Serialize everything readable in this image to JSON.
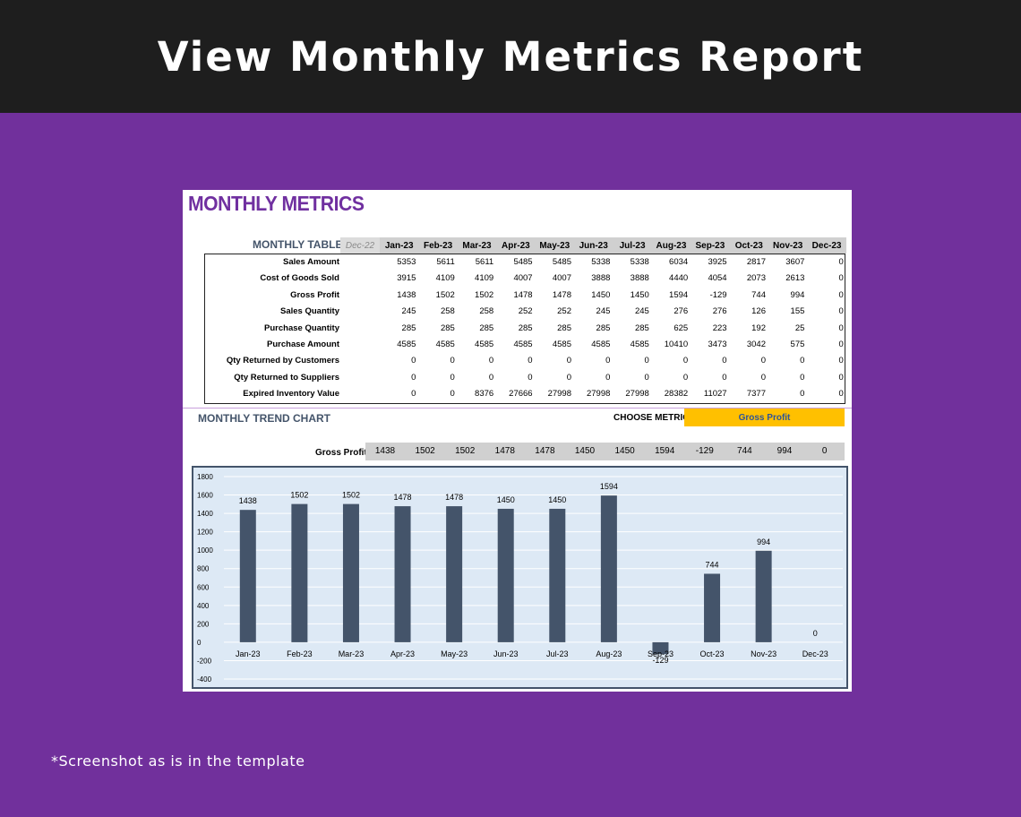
{
  "banner": {
    "title": "View Monthly Metrics Report"
  },
  "sheet": {
    "title": "MONTHLY METRICS",
    "table_label": "MONTHLY TABLE",
    "prev_month": "Dec-22",
    "months": [
      "Jan-23",
      "Feb-23",
      "Mar-23",
      "Apr-23",
      "May-23",
      "Jun-23",
      "Jul-23",
      "Aug-23",
      "Sep-23",
      "Oct-23",
      "Nov-23",
      "Dec-23"
    ],
    "rows": [
      {
        "label": "Sales Amount",
        "values": [
          "5353",
          "5611",
          "5611",
          "5485",
          "5485",
          "5338",
          "5338",
          "6034",
          "3925",
          "2817",
          "3607",
          "0"
        ]
      },
      {
        "label": "Cost of Goods Sold",
        "values": [
          "3915",
          "4109",
          "4109",
          "4007",
          "4007",
          "3888",
          "3888",
          "4440",
          "4054",
          "2073",
          "2613",
          "0"
        ]
      },
      {
        "label": "Gross Profit",
        "values": [
          "1438",
          "1502",
          "1502",
          "1478",
          "1478",
          "1450",
          "1450",
          "1594",
          "-129",
          "744",
          "994",
          "0"
        ]
      },
      {
        "label": "Sales Quantity",
        "values": [
          "245",
          "258",
          "258",
          "252",
          "252",
          "245",
          "245",
          "276",
          "276",
          "126",
          "155",
          "0"
        ]
      },
      {
        "label": "Purchase Quantity",
        "values": [
          "285",
          "285",
          "285",
          "285",
          "285",
          "285",
          "285",
          "625",
          "223",
          "192",
          "25",
          "0"
        ]
      },
      {
        "label": "Purchase Amount",
        "values": [
          "4585",
          "4585",
          "4585",
          "4585",
          "4585",
          "4585",
          "4585",
          "10410",
          "3473",
          "3042",
          "575",
          "0"
        ]
      },
      {
        "label": "Qty Returned by Customers",
        "values": [
          "0",
          "0",
          "0",
          "0",
          "0",
          "0",
          "0",
          "0",
          "0",
          "0",
          "0",
          "0"
        ]
      },
      {
        "label": "Qty Returned to Suppliers",
        "values": [
          "0",
          "0",
          "0",
          "0",
          "0",
          "0",
          "0",
          "0",
          "0",
          "0",
          "0",
          "0"
        ]
      },
      {
        "label": "Expired Inventory Value",
        "values": [
          "0",
          "0",
          "8376",
          "27666",
          "27998",
          "27998",
          "27998",
          "28382",
          "11027",
          "7377",
          "0",
          "0"
        ]
      }
    ],
    "chart_title": "MONTHLY TREND CHART",
    "choose_metric_label": "CHOOSE METRIC",
    "selected_metric": "Gross Profit",
    "strip_label": "Gross Profit",
    "strip_values": [
      "1438",
      "1502",
      "1502",
      "1478",
      "1478",
      "1450",
      "1450",
      "1594",
      "-129",
      "744",
      "994",
      "0"
    ]
  },
  "chart_data": {
    "type": "bar",
    "categories": [
      "Jan-23",
      "Feb-23",
      "Mar-23",
      "Apr-23",
      "May-23",
      "Jun-23",
      "Jul-23",
      "Aug-23",
      "Sep-23",
      "Oct-23",
      "Nov-23",
      "Dec-23"
    ],
    "values": [
      1438,
      1502,
      1502,
      1478,
      1478,
      1450,
      1450,
      1594,
      -129,
      744,
      994,
      0
    ],
    "ylim": [
      -400,
      1800
    ],
    "yticks": [
      -400,
      -200,
      0,
      200,
      400,
      600,
      800,
      1000,
      1200,
      1400,
      1600,
      1800
    ],
    "grid": true,
    "bar_color": "#44546a",
    "background": "#dde9f5"
  },
  "footnote": "*Screenshot as is in the template"
}
